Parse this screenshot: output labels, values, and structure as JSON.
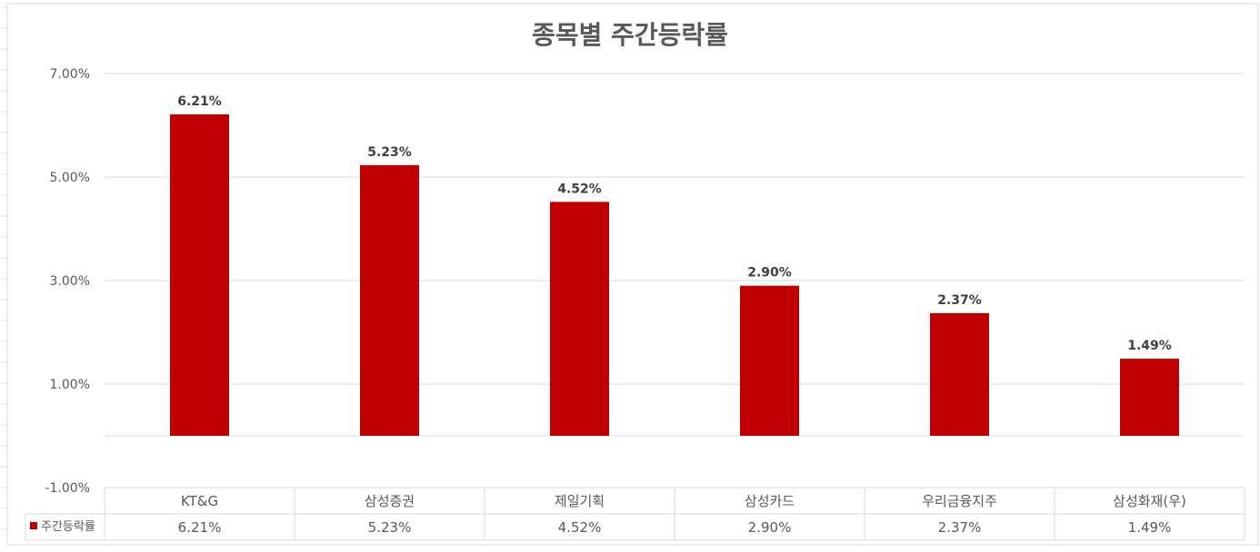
{
  "chart_data": {
    "type": "bar",
    "title": "종목별 주간등락률",
    "categories": [
      "KT&G",
      "삼성증권",
      "제일기획",
      "삼성카드",
      "우리금융지주",
      "삼성화재(우)"
    ],
    "series": [
      {
        "name": "주간등락률",
        "values": [
          6.21,
          5.23,
          4.52,
          2.9,
          2.37,
          1.49
        ],
        "color": "#c00000"
      }
    ],
    "data_labels": [
      "6.21%",
      "5.23%",
      "4.52%",
      "2.90%",
      "2.37%",
      "1.49%"
    ],
    "y_ticks": [
      7,
      5,
      3,
      1,
      -1
    ],
    "y_tick_labels": [
      "7.00%",
      "5.00%",
      "3.00%",
      "1.00%",
      "-1.00%"
    ],
    "ylim": [
      -1,
      7
    ],
    "grid": true,
    "legend_position": "data-table",
    "data_table": {
      "header": [
        "KT&G",
        "삼성증권",
        "제일기획",
        "삼성카드",
        "우리금융지주",
        "삼성화재(우)"
      ],
      "row_label": "주간등락률",
      "row_values": [
        "6.21%",
        "5.23%",
        "4.52%",
        "2.90%",
        "2.37%",
        "1.49%"
      ]
    }
  }
}
